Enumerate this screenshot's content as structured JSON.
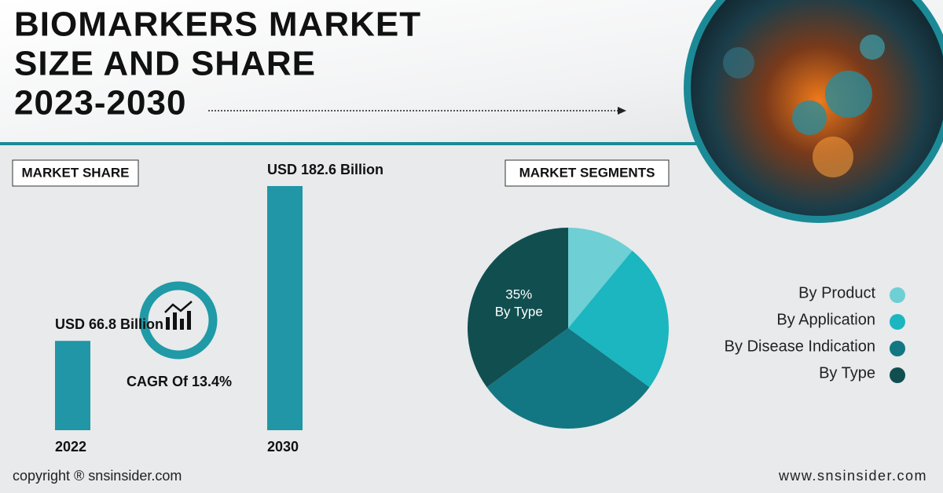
{
  "header": {
    "title_lines": [
      "BIOMARKERS MARKET",
      "SIZE AND SHARE",
      "2023-2030"
    ]
  },
  "chart_data": [
    {
      "type": "bar",
      "title": "MARKET SHARE",
      "categories": [
        "2022",
        "2030"
      ],
      "values": [
        66.8,
        182.6
      ],
      "value_labels": [
        "USD 66.8 Billion",
        "USD 182.6 Billion"
      ],
      "color": "#2196a6",
      "annotation": "CAGR Of 13.4%"
    },
    {
      "type": "pie",
      "title": "MARKET SEGMENTS",
      "categories": [
        "By Product",
        "By Application",
        "By Disease Indication",
        "By Type"
      ],
      "values": [
        11,
        24,
        30,
        35
      ],
      "value_labels": [
        null,
        null,
        null,
        "35%"
      ],
      "colors": [
        "#6ecfd4",
        "#1bb6c0",
        "#127782",
        "#114e50"
      ],
      "legend": "right"
    }
  ],
  "footer": {
    "copyright": "copyright ® snsinsider.com",
    "website": "www.snsinsider.com"
  }
}
